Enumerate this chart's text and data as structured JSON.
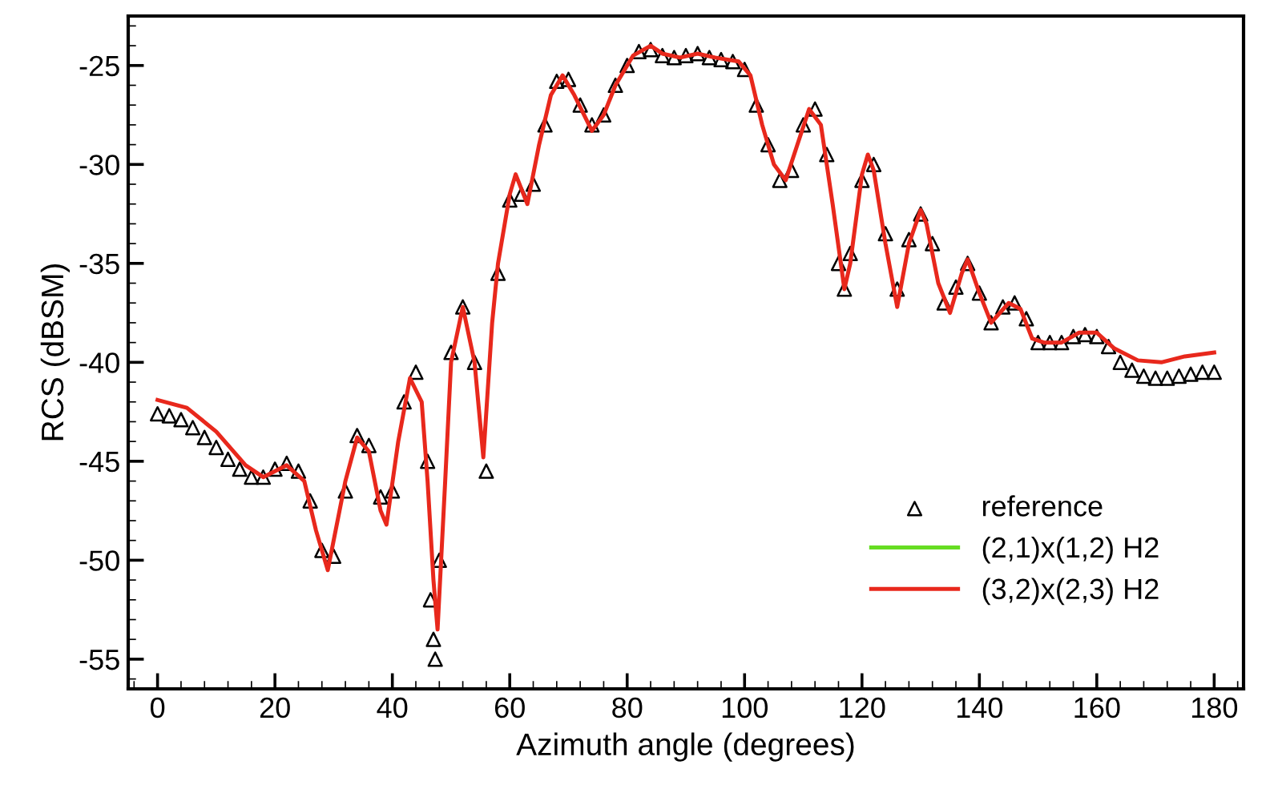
{
  "chart_data": {
    "type": "line",
    "xlabel": "Azimuth angle (degrees)",
    "ylabel": "RCS (dBSM)",
    "xlim": [
      -5,
      185
    ],
    "ylim": [
      -56.5,
      -22.5
    ],
    "xticks": [
      0,
      20,
      40,
      60,
      80,
      100,
      120,
      140,
      160,
      180
    ],
    "yticks": [
      -55,
      -50,
      -45,
      -40,
      -35,
      -30,
      -25
    ],
    "grid": false,
    "legend": "bottom right",
    "series": [
      {
        "name": "reference",
        "type": "scatter",
        "marker": "triangle",
        "color": "#000000",
        "x": [
          0,
          2,
          4,
          6,
          8,
          10,
          12,
          14,
          16,
          18,
          20,
          22,
          24,
          26,
          28,
          30,
          32,
          34,
          36,
          38,
          40,
          42,
          44,
          46,
          46.5,
          47,
          47.3,
          48,
          50,
          52,
          54,
          56,
          58,
          60,
          62,
          64,
          66,
          68,
          70,
          72,
          74,
          76,
          78,
          80,
          82,
          84,
          86,
          88,
          90,
          92,
          94,
          96,
          98,
          100,
          102,
          104,
          106,
          108,
          110,
          112,
          114,
          116,
          117,
          118,
          120,
          122,
          124,
          126,
          128,
          130,
          132,
          134,
          136,
          138,
          140,
          142,
          144,
          146,
          148,
          150,
          152,
          154,
          156,
          158,
          160,
          162,
          164,
          166,
          168,
          170,
          172,
          174,
          176,
          178,
          180
        ],
        "values": [
          -42.6,
          -42.7,
          -42.9,
          -43.3,
          -43.8,
          -44.3,
          -44.9,
          -45.4,
          -45.8,
          -45.8,
          -45.4,
          -45.1,
          -45.5,
          -47,
          -49.5,
          -49.8,
          -46.5,
          -43.7,
          -44.2,
          -46.8,
          -46.5,
          -42,
          -40.5,
          -45,
          -52,
          -54,
          -55,
          -50,
          -39.5,
          -37.2,
          -40,
          -45.5,
          -35.5,
          -31.8,
          -31.5,
          -31,
          -28,
          -25.8,
          -25.7,
          -27,
          -28,
          -27.5,
          -26,
          -25,
          -24.3,
          -24.2,
          -24.5,
          -24.6,
          -24.5,
          -24.4,
          -24.6,
          -24.7,
          -24.8,
          -25.2,
          -27,
          -29,
          -30.8,
          -30.3,
          -28,
          -27.2,
          -29.5,
          -35,
          -36.3,
          -34.5,
          -30.8,
          -30,
          -33.5,
          -36.3,
          -33.8,
          -32.5,
          -34,
          -37,
          -36.2,
          -35,
          -36.5,
          -38,
          -37.2,
          -37,
          -37.8,
          -39,
          -39,
          -39,
          -38.7,
          -38.6,
          -38.7,
          -39.2,
          -40,
          -40.4,
          -40.7,
          -40.8,
          -40.8,
          -40.7,
          -40.6,
          -40.5,
          -40.5
        ]
      },
      {
        "name": "(2,1)x(1,2) H2",
        "color": "#66dd22"
      },
      {
        "name": "(3,2)x(2,3) H2",
        "color": "#e8281c",
        "x": [
          0,
          5,
          10,
          15,
          18,
          22,
          25,
          27,
          29,
          32,
          34,
          36,
          38,
          39,
          41,
          43,
          45,
          46,
          47,
          47.7,
          49,
          50,
          52,
          54,
          55.5,
          57,
          58,
          60,
          61,
          63,
          65,
          67,
          69,
          71,
          74,
          76,
          78,
          81,
          84,
          86,
          89,
          92,
          95,
          99,
          101,
          103,
          105,
          107,
          109,
          111,
          113,
          115,
          117,
          118,
          120,
          121,
          122,
          124,
          126,
          128,
          130,
          131,
          133,
          135,
          137,
          138,
          140,
          142,
          145,
          147,
          149,
          151,
          154,
          157,
          160,
          163,
          167,
          171,
          175,
          180
        ],
        "values": [
          -41.9,
          -42.3,
          -43.5,
          -45.2,
          -45.8,
          -45.2,
          -46,
          -48.5,
          -50.5,
          -46,
          -43.8,
          -44.5,
          -47.5,
          -48.2,
          -44,
          -40.8,
          -42,
          -46,
          -51,
          -53.5,
          -46,
          -40,
          -37.2,
          -40,
          -44.8,
          -38,
          -35,
          -31.5,
          -30.5,
          -32,
          -29,
          -26.5,
          -25.5,
          -26.5,
          -28.3,
          -27.5,
          -26,
          -24.5,
          -24,
          -24.4,
          -24.6,
          -24.4,
          -24.6,
          -24.8,
          -25.5,
          -28,
          -30,
          -30.8,
          -29,
          -27.2,
          -28,
          -32,
          -36.3,
          -35,
          -30.5,
          -29.5,
          -30.3,
          -34,
          -37.2,
          -34,
          -32.3,
          -33,
          -36,
          -37.5,
          -35.5,
          -34.8,
          -36.5,
          -38,
          -37,
          -37.3,
          -38.8,
          -39,
          -39,
          -38.5,
          -38.5,
          -39.3,
          -39.9,
          -40,
          -39.7,
          -39.5
        ]
      }
    ]
  }
}
